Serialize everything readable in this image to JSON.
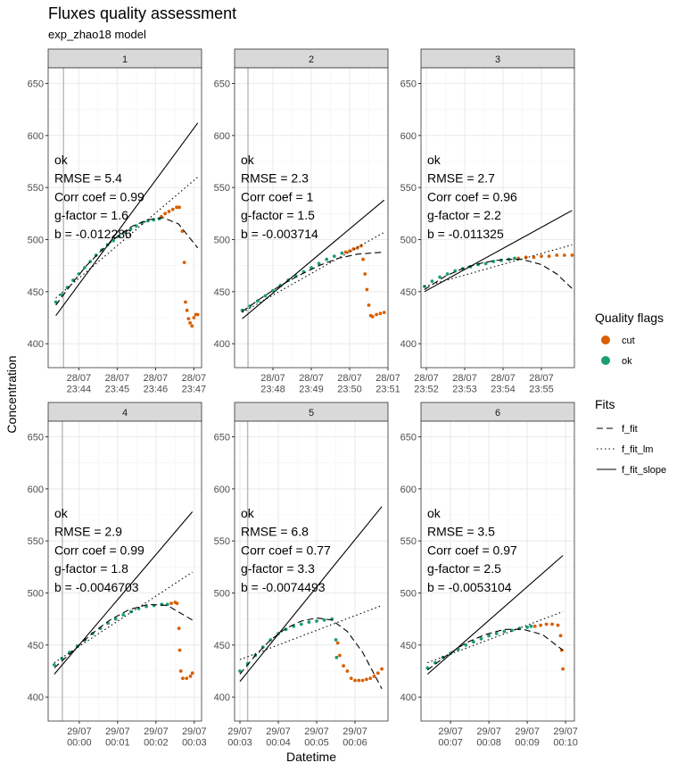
{
  "chart_data": {
    "type": "scatter",
    "title": "Fluxes quality assessment",
    "subtitle": "exp_zhao18 model",
    "x_label": "Datetime",
    "y_label": "Concentration",
    "ylim": [
      377,
      665
    ],
    "yticks": [
      400,
      450,
      500,
      550,
      600,
      650
    ],
    "grid": true,
    "legend_position": "right",
    "flags_title": "Quality flags",
    "flags": [
      {
        "name": "cut",
        "color": "#D95F02"
      },
      {
        "name": "ok",
        "color": "#1B9E77"
      }
    ],
    "fits_title": "Fits",
    "fits": [
      {
        "name": "f_fit",
        "linetype": "dashed"
      },
      {
        "name": "f_fit_lm",
        "linetype": "dotted"
      },
      {
        "name": "f_fit_slope",
        "linetype": "solid"
      }
    ],
    "panels": [
      {
        "strip": "1",
        "xlim": [
          1423.2,
          1427.2
        ],
        "vline": 1423.6,
        "xticks": [
          {
            "value": 1424,
            "label": "28/07\n23:44"
          },
          {
            "value": 1425,
            "label": "28/07\n23:45"
          },
          {
            "value": 1426,
            "label": "28/07\n23:46"
          },
          {
            "value": 1427,
            "label": "28/07\n23:47"
          }
        ],
        "annotations": [
          "ok",
          "RMSE = 5.4",
          "Corr coef = 0.99",
          "g-factor = 1.6",
          "b = -0.012286"
        ],
        "points": {
          "ok": {
            "x": [
              1423.4,
              1423.55,
              1423.7,
              1423.85,
              1424.0,
              1424.15,
              1424.3,
              1424.45,
              1424.6,
              1424.75,
              1424.9,
              1425.05,
              1425.2,
              1425.35,
              1425.5,
              1425.65,
              1425.8,
              1425.95,
              1426.1
            ],
            "values": [
              440,
              447,
              454,
              461,
              467,
              473,
              479,
              485,
              490,
              495,
              499,
              503,
              507,
              510,
              513,
              516,
              518,
              519,
              520
            ]
          },
          "cut": {
            "x": [
              1426.15,
              1426.25,
              1426.35,
              1426.45,
              1426.55,
              1426.62,
              1426.7,
              1426.75,
              1426.78,
              1426.82,
              1426.86,
              1426.9,
              1426.95,
              1427.0,
              1427.05,
              1427.1
            ],
            "values": [
              522,
              525,
              527,
              529,
              531,
              531,
              508,
              478,
              440,
              432,
              424,
              420,
              417,
              425,
              428,
              428
            ]
          }
        },
        "fit_lines": {
          "f_fit": {
            "x": [
              1423.4,
              1423.8,
              1424.2,
              1424.6,
              1425.0,
              1425.4,
              1425.8,
              1426.2,
              1426.6,
              1427.1
            ],
            "values": [
              437,
              457,
              475,
              490,
              503,
              513,
              519,
              521,
              515,
              492
            ]
          },
          "f_fit_lm": {
            "x": [
              1423.4,
              1427.1
            ],
            "values": [
              444,
              560
            ]
          },
          "f_fit_slope": {
            "x": [
              1423.4,
              1427.1
            ],
            "values": [
              427,
              612
            ]
          }
        }
      },
      {
        "strip": "2",
        "xlim": [
          1427.0,
          1431.0
        ],
        "vline": 1427.35,
        "xticks": [
          {
            "value": 1428,
            "label": "28/07\n23:48"
          },
          {
            "value": 1429,
            "label": "28/07\n23:49"
          },
          {
            "value": 1430,
            "label": "28/07\n23:50"
          },
          {
            "value": 1431,
            "label": "28/07\n23:51"
          }
        ],
        "annotations": [
          "ok",
          "RMSE = 2.3",
          "Corr coef = 1",
          "g-factor = 1.5",
          "b = -0.003714"
        ],
        "points": {
          "ok": {
            "x": [
              1427.2,
              1427.4,
              1427.6,
              1427.8,
              1428.0,
              1428.2,
              1428.4,
              1428.6,
              1428.8,
              1429.0,
              1429.2,
              1429.4,
              1429.6,
              1429.8
            ],
            "values": [
              432,
              436,
              441,
              446,
              451,
              456,
              461,
              465,
              469,
              473,
              477,
              481,
              484,
              487
            ]
          },
          "cut": {
            "x": [
              1429.9,
              1430.0,
              1430.1,
              1430.2,
              1430.3,
              1430.35,
              1430.4,
              1430.45,
              1430.5,
              1430.55,
              1430.6,
              1430.7,
              1430.8,
              1430.9
            ],
            "values": [
              488,
              489,
              491,
              492,
              494,
              481,
              467,
              452,
              437,
              427,
              426,
              428,
              429,
              430
            ]
          }
        },
        "fit_lines": {
          "f_fit": {
            "x": [
              1427.2,
              1427.7,
              1428.2,
              1428.7,
              1429.2,
              1429.7,
              1430.2,
              1430.9
            ],
            "values": [
              431,
              444,
              456,
              466,
              475,
              482,
              486,
              488
            ]
          },
          "f_fit_lm": {
            "x": [
              1427.2,
              1430.9
            ],
            "values": [
              430,
              507
            ]
          },
          "f_fit_slope": {
            "x": [
              1427.2,
              1430.9
            ],
            "values": [
              424,
              538
            ]
          }
        }
      },
      {
        "strip": "3",
        "xlim": [
          1431.86,
          1435.86
        ],
        "vline": null,
        "xticks": [
          {
            "value": 1432,
            "label": "28/07\n23:52"
          },
          {
            "value": 1433,
            "label": "28/07\n23:53"
          },
          {
            "value": 1434,
            "label": "28/07\n23:54"
          },
          {
            "value": 1435,
            "label": "28/07\n23:55"
          }
        ],
        "annotations": [
          "ok",
          "RMSE = 2.7",
          "Corr coef = 0.96",
          "g-factor = 2.2",
          "b = -0.011325"
        ],
        "points": {
          "ok": {
            "x": [
              1431.95,
              1432.15,
              1432.35,
              1432.55,
              1432.75,
              1432.95,
              1433.15,
              1433.35,
              1433.55,
              1433.75,
              1433.95,
              1434.15,
              1434.3
            ],
            "values": [
              455,
              460,
              464,
              467,
              470,
              472,
              474,
              476,
              477,
              479,
              480,
              481,
              482
            ]
          },
          "cut": {
            "x": [
              1434.4,
              1434.6,
              1434.8,
              1435.0,
              1435.2,
              1435.4,
              1435.6,
              1435.8
            ],
            "values": [
              482,
              483,
              483,
              484,
              484,
              485,
              485,
              485
            ]
          }
        },
        "fit_lines": {
          "f_fit": {
            "x": [
              1431.95,
              1432.5,
              1433.0,
              1433.5,
              1434.0,
              1434.5,
              1435.0,
              1435.4,
              1435.8
            ],
            "values": [
              452,
              465,
              473,
              478,
              481,
              481,
              476,
              467,
              453
            ]
          },
          "f_fit_lm": {
            "x": [
              1431.95,
              1435.8
            ],
            "values": [
              455,
              495
            ]
          },
          "f_fit_slope": {
            "x": [
              1431.95,
              1435.8
            ],
            "values": [
              450,
              528
            ]
          }
        }
      },
      {
        "strip": "4",
        "xlim": [
          -0.81,
          3.19
        ],
        "vline": -0.44,
        "xticks": [
          {
            "value": 0,
            "label": "29/07\n00:00"
          },
          {
            "value": 1,
            "label": "29/07\n00:01"
          },
          {
            "value": 2,
            "label": "29/07\n00:02"
          },
          {
            "value": 3,
            "label": "29/07\n00:03"
          }
        ],
        "annotations": [
          "ok",
          "RMSE = 2.9",
          "Corr coef = 0.99",
          "g-factor = 1.8",
          "b = -0.0046703"
        ],
        "points": {
          "ok": {
            "x": [
              -0.65,
              -0.45,
              -0.25,
              -0.05,
              0.15,
              0.35,
              0.55,
              0.75,
              0.95,
              1.15,
              1.35,
              1.55,
              1.75,
              1.95,
              2.15,
              2.3
            ],
            "values": [
              431,
              437,
              443,
              449,
              455,
              461,
              466,
              471,
              475,
              479,
              482,
              485,
              487,
              488,
              489,
              489
            ]
          },
          "cut": {
            "x": [
              2.4,
              2.5,
              2.55,
              2.6,
              2.62,
              2.65,
              2.7,
              2.8,
              2.9,
              2.95
            ],
            "values": [
              490,
              491,
              490,
              466,
              445,
              425,
              418,
              418,
              420,
              423
            ]
          }
        },
        "fit_lines": {
          "f_fit": {
            "x": [
              -0.65,
              -0.2,
              0.3,
              0.8,
              1.3,
              1.8,
              2.3,
              2.95
            ],
            "values": [
              428,
              443,
              460,
              474,
              484,
              489,
              488,
              474
            ]
          },
          "f_fit_lm": {
            "x": [
              -0.65,
              2.95
            ],
            "values": [
              433,
              520
            ]
          },
          "f_fit_slope": {
            "x": [
              -0.65,
              2.95
            ],
            "values": [
              422,
              578
            ]
          }
        }
      },
      {
        "strip": "5",
        "xlim": [
          2.86,
          6.86
        ],
        "vline": 3.2,
        "xticks": [
          {
            "value": 3,
            "label": "29/07\n00:03"
          },
          {
            "value": 4,
            "label": "29/07\n00:04"
          },
          {
            "value": 5,
            "label": "29/07\n00:05"
          },
          {
            "value": 6,
            "label": "29/07\n00:06"
          }
        ],
        "annotations": [
          "ok",
          "RMSE = 6.8",
          "Corr coef = 0.77",
          "g-factor = 3.3",
          "b = -0.0074493"
        ],
        "points": {
          "ok": {
            "x": [
              3.0,
              3.2,
              3.4,
              3.6,
              3.8,
              4.0,
              4.2,
              4.4,
              4.6,
              4.8,
              5.0,
              5.2,
              5.4,
              5.5,
              5.52
            ],
            "values": [
              425,
              432,
              440,
              448,
              455,
              461,
              465,
              468,
              470,
              472,
              473,
              474,
              475,
              455,
              438
            ]
          },
          "cut": {
            "x": [
              5.55,
              5.6,
              5.7,
              5.8,
              5.9,
              6.0,
              6.1,
              6.2,
              6.3,
              6.4,
              6.5,
              6.6,
              6.7
            ],
            "values": [
              452,
              440,
              430,
              425,
              418,
              416,
              416,
              416,
              417,
              418,
              420,
              423,
              427
            ]
          }
        },
        "fit_lines": {
          "f_fit": {
            "x": [
              3.0,
              3.4,
              3.8,
              4.2,
              4.6,
              5.0,
              5.4,
              5.8,
              6.2,
              6.7
            ],
            "values": [
              422,
              440,
              455,
              466,
              473,
              476,
              474,
              463,
              443,
              408
            ]
          },
          "f_fit_lm": {
            "x": [
              3.0,
              6.7
            ],
            "values": [
              436,
              488
            ]
          },
          "f_fit_slope": {
            "x": [
              3.0,
              6.7
            ],
            "values": [
              415,
              583
            ]
          }
        }
      },
      {
        "strip": "6",
        "xlim": [
          6.23,
          10.23
        ],
        "vline": null,
        "xticks": [
          {
            "value": 7,
            "label": "29/07\n00:07"
          },
          {
            "value": 8,
            "label": "29/07\n00:08"
          },
          {
            "value": 9,
            "label": "29/07\n00:09"
          },
          {
            "value": 10,
            "label": "29/07\n00:10"
          }
        ],
        "annotations": [
          "ok",
          "RMSE = 3.5",
          "Corr coef = 0.97",
          "g-factor = 2.5",
          "b = -0.0053104"
        ],
        "points": {
          "ok": {
            "x": [
              6.4,
              6.6,
              6.8,
              7.0,
              7.2,
              7.4,
              7.6,
              7.8,
              8.0,
              8.2,
              8.4,
              8.6,
              8.8,
              9.0,
              9.1
            ],
            "values": [
              428,
              433,
              438,
              442,
              446,
              450,
              453,
              456,
              459,
              461,
              463,
              464,
              466,
              467,
              468
            ]
          },
          "cut": {
            "x": [
              9.2,
              9.35,
              9.5,
              9.65,
              9.8,
              9.87,
              9.9,
              9.93
            ],
            "values": [
              468,
              469,
              470,
              470,
              469,
              459,
              445,
              427
            ]
          }
        },
        "fit_lines": {
          "f_fit": {
            "x": [
              6.4,
              6.9,
              7.4,
              7.9,
              8.4,
              8.9,
              9.4,
              9.93
            ],
            "values": [
              426,
              440,
              452,
              460,
              465,
              465,
              460,
              445
            ]
          },
          "f_fit_lm": {
            "x": [
              6.4,
              9.93
            ],
            "values": [
              433,
              482
            ]
          },
          "f_fit_slope": {
            "x": [
              6.4,
              9.93
            ],
            "values": [
              422,
              536
            ]
          }
        }
      }
    ]
  }
}
